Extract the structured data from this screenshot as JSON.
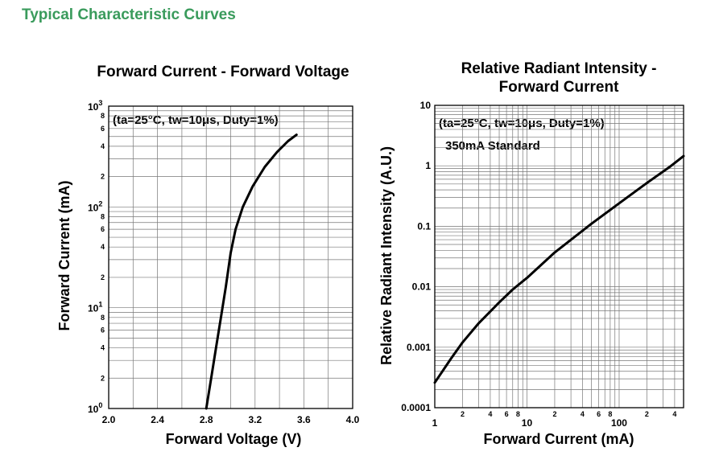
{
  "page": {
    "heading": "Typical Characteristic Curves"
  },
  "chart_data": [
    {
      "type": "line",
      "title": "Forward Current - Forward Voltage",
      "xlabel": "Forward Voltage (V)",
      "ylabel": "Forward Current (mA)",
      "annotation": "(ta=25°C, tw=10μs, Duty=1%)",
      "xlim": [
        2.0,
        4.0
      ],
      "ylim": [
        1,
        1000
      ],
      "x_scale": "linear",
      "y_scale": "log",
      "grid": true,
      "x_ticks": [
        "2.0",
        "2.4",
        "2.8",
        "3.2",
        "3.6",
        "4.0"
      ],
      "y_ticks": [
        {
          "base": "10",
          "exp": "0"
        },
        {
          "base": "10",
          "exp": "1"
        },
        {
          "base": "10",
          "exp": "2"
        },
        {
          "base": "10",
          "exp": "3"
        }
      ],
      "y_minor_labels": [
        "2",
        "4",
        "6",
        "8"
      ],
      "series": [
        {
          "x": [
            2.8,
            2.84,
            2.88,
            2.92,
            2.96,
            3.0,
            3.04,
            3.1,
            3.18,
            3.28,
            3.38,
            3.47,
            3.54
          ],
          "y": [
            1,
            2,
            4,
            8,
            16,
            35,
            60,
            100,
            160,
            250,
            350,
            450,
            520
          ]
        }
      ]
    },
    {
      "type": "line",
      "title": "Relative Radiant Intensity - Forward Current",
      "title_lines": [
        "Relative Radiant Intensity -",
        "Forward Current"
      ],
      "xlabel": "Forward Current (mA)",
      "ylabel": "Relative Radiant Intensity (A.U.)",
      "annotation": "(ta=25°C, tw=10μs, Duty=1%)",
      "note": "350mA Standard",
      "xlim": [
        1,
        500
      ],
      "ylim": [
        0.0001,
        10
      ],
      "x_scale": "log",
      "y_scale": "log",
      "grid": true,
      "x_ticks": [
        "1",
        "10",
        "100"
      ],
      "x_minor_labels": [
        "2",
        "4",
        "6",
        "8"
      ],
      "y_ticks": [
        "0.0001",
        "0.001",
        "0.01",
        "0.1",
        "1",
        "10"
      ],
      "series": [
        {
          "x": [
            1,
            1.5,
            2,
            3,
            5,
            7,
            10,
            20,
            50,
            100,
            200,
            350,
            500
          ],
          "y": [
            0.00026,
            0.00065,
            0.0012,
            0.0025,
            0.0055,
            0.009,
            0.014,
            0.037,
            0.11,
            0.24,
            0.52,
            0.95,
            1.45
          ]
        }
      ]
    }
  ]
}
